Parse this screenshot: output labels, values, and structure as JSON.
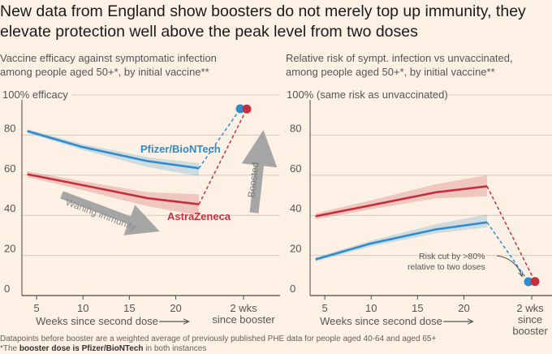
{
  "headline": "New data from England show boosters do not merely top up immunity, they elevate protection well above the peak level from two doses",
  "colors": {
    "pfizer": "#2f8ccc",
    "astrazeneca": "#c4303d",
    "grid": "#d6cabd",
    "axis": "#4d4845",
    "arrow": "#a7a6a6",
    "background": "#fdf1e5"
  },
  "chart_data": [
    {
      "type": "line",
      "subtitle": [
        "Vaccine efficacy against symptomatic infection",
        "among people aged 50+*, by initial vaccine**"
      ],
      "ylabel": "100% efficacy",
      "ylim": [
        0,
        100
      ],
      "yticks": [
        "0",
        "20",
        "40",
        "60",
        "80"
      ],
      "xlim": [
        3.5,
        26
      ],
      "xticks": [
        "5",
        "10",
        "15",
        "20"
      ],
      "xlabel": "Weeks since second dose",
      "booster_tick": [
        "2 wks",
        "since booster"
      ],
      "series": [
        {
          "name": "Pfizer/BioNTech",
          "x": [
            4,
            10,
            17,
            22.5
          ],
          "y": [
            82,
            74,
            67,
            63.5
          ],
          "band_lower": [
            81,
            72.5,
            64,
            59.5
          ],
          "band_upper": [
            83,
            75.5,
            69,
            66
          ],
          "booster_value": 93.1
        },
        {
          "name": "AstraZeneca",
          "x": [
            4,
            10,
            17,
            22.5
          ],
          "y": [
            60.5,
            55,
            48.5,
            45.5
          ],
          "band_lower": [
            59,
            52.5,
            44.5,
            40
          ],
          "band_upper": [
            62,
            57,
            51.5,
            50.5
          ],
          "booster_value": 93
        }
      ],
      "annotations": {
        "waning": "Waning immunity",
        "boosted": "Boosted"
      }
    },
    {
      "type": "line",
      "subtitle": [
        "Relative risk of sympt. infection vs unvaccinated,",
        "among people aged 50+*, by initial vaccine**"
      ],
      "ylabel": "100% (same risk as unvaccinated)",
      "ylim": [
        0,
        100
      ],
      "yticks": [
        "0",
        "20",
        "40",
        "60",
        "80"
      ],
      "xlim": [
        3.5,
        26
      ],
      "xticks": [
        "5",
        "10",
        "15",
        "20"
      ],
      "xlabel": "Weeks since second dose",
      "booster_tick": [
        "2 wks",
        "since",
        "booster"
      ],
      "series": [
        {
          "name": "Pfizer/BioNTech",
          "x": [
            4,
            10,
            17,
            22.5
          ],
          "y": [
            18,
            26,
            33,
            36.5
          ],
          "band_lower": [
            17,
            24.5,
            31,
            34
          ],
          "band_upper": [
            19,
            27.5,
            35.5,
            40.5
          ],
          "booster_value": 6.9
        },
        {
          "name": "AstraZeneca",
          "x": [
            4,
            10,
            17,
            22.5
          ],
          "y": [
            39.5,
            45,
            51.5,
            54.5
          ],
          "band_lower": [
            38,
            43,
            48.5,
            49.5
          ],
          "band_upper": [
            41,
            47.5,
            55.5,
            60
          ],
          "booster_value": 7
        }
      ],
      "annotations": {
        "risk": [
          "Risk cut by >80%",
          "relative to two doses"
        ]
      }
    }
  ],
  "footnotes": {
    "line1": "Datapoints before booster are a weighted average of previously published PHE data for people aged 40-64 and aged 65+",
    "line2_prefix": "*The ",
    "line2_bold": "booster dose is Pfizer/BioNTech",
    "line2_suffix": " in both instances"
  }
}
